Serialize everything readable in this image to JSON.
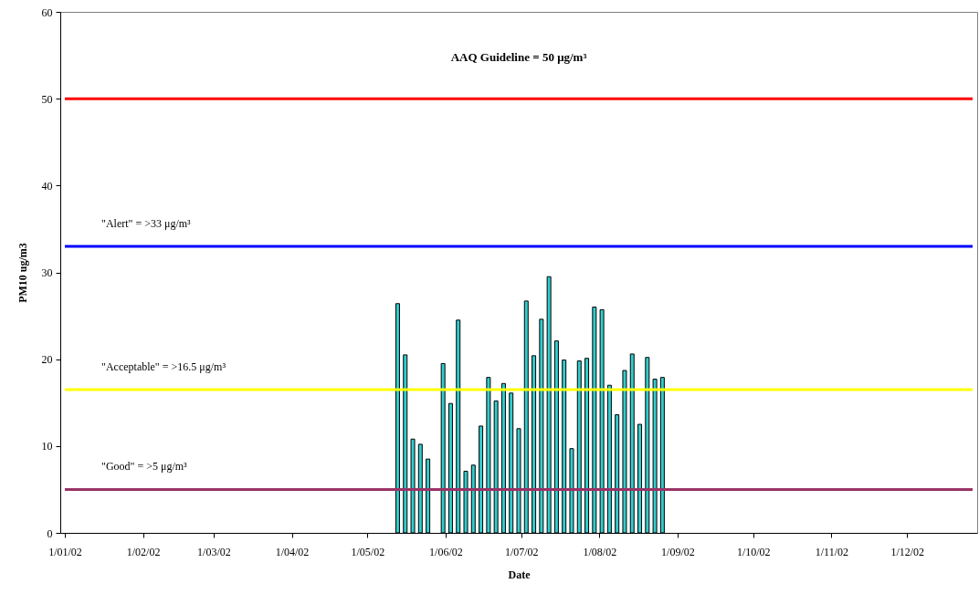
{
  "chart_data": {
    "type": "bar",
    "xlabel": "Date",
    "ylabel": "PM10 ug/m3",
    "x": [
      "2002-05-13",
      "2002-05-16",
      "2002-05-19",
      "2002-05-22",
      "2002-05-25",
      "2002-05-31",
      "2002-06-03",
      "2002-06-06",
      "2002-06-09",
      "2002-06-12",
      "2002-06-15",
      "2002-06-18",
      "2002-06-21",
      "2002-06-24",
      "2002-06-27",
      "2002-06-30",
      "2002-07-03",
      "2002-07-06",
      "2002-07-09",
      "2002-07-12",
      "2002-07-15",
      "2002-07-18",
      "2002-07-21",
      "2002-07-24",
      "2002-07-27",
      "2002-07-30",
      "2002-08-02",
      "2002-08-05",
      "2002-08-08",
      "2002-08-11",
      "2002-08-14",
      "2002-08-17",
      "2002-08-20",
      "2002-08-23",
      "2002-08-26"
    ],
    "series": [
      {
        "color": "#33cccc",
        "values": [
          26.4,
          20.5,
          10.8,
          10.2,
          8.5,
          19.5,
          14.9,
          24.5,
          7.1,
          7.8,
          12.3,
          17.9,
          15.2,
          17.2,
          16.1,
          12.0,
          26.7,
          20.4,
          24.6,
          29.5,
          22.1,
          19.9,
          9.7,
          19.8,
          20.1,
          26.0,
          25.7,
          17.0,
          13.6,
          18.7,
          20.6,
          12.5,
          20.2,
          17.7,
          17.9
        ]
      }
    ],
    "xlim": [
      "2002-01-01",
      "2002-12-27"
    ],
    "xticks": [
      {
        "value": "2002-01-01",
        "label": "1/01/02"
      },
      {
        "value": "2002-02-01",
        "label": "1/02/02"
      },
      {
        "value": "2002-03-01",
        "label": "1/03/02"
      },
      {
        "value": "2002-04-01",
        "label": "1/04/02"
      },
      {
        "value": "2002-05-01",
        "label": "1/05/02"
      },
      {
        "value": "2002-06-01",
        "label": "1/06/02"
      },
      {
        "value": "2002-07-01",
        "label": "1/07/02"
      },
      {
        "value": "2002-08-01",
        "label": "1/08/02"
      },
      {
        "value": "2002-09-01",
        "label": "1/09/02"
      },
      {
        "value": "2002-10-01",
        "label": "1/10/02"
      },
      {
        "value": "2002-11-01",
        "label": "1/11/02"
      },
      {
        "value": "2002-12-01",
        "label": "1/12/02"
      }
    ],
    "ylim": [
      0,
      60
    ],
    "yticks": [
      0,
      10,
      20,
      30,
      40,
      50,
      60
    ],
    "ref_lines": [
      {
        "axis": "y",
        "value": 50,
        "label": "AAQ Guideline = 50 μg/m³",
        "color": "#ff0000"
      },
      {
        "axis": "y",
        "value": 33,
        "label": "\"Alert\" = >33  μg/m³",
        "color": "#0000ff"
      },
      {
        "axis": "y",
        "value": 16.5,
        "label": "\"Acceptable\" = >16.5 μg/m³",
        "color": "#ffff00"
      },
      {
        "axis": "y",
        "value": 5,
        "label": "\"Good\" = >5  μg/m³",
        "color": "#993366"
      }
    ]
  }
}
